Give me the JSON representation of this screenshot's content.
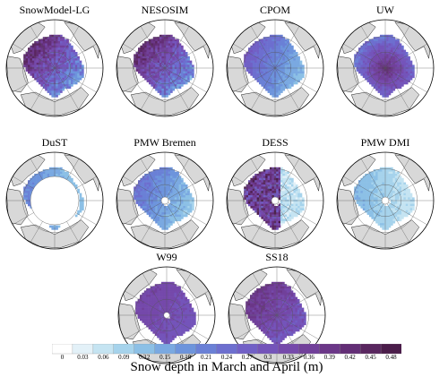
{
  "panels": [
    {
      "title": "SnowModel-LG",
      "pattern": "model",
      "hole": 0
    },
    {
      "title": "NESOSIM",
      "pattern": "model",
      "hole": 0
    },
    {
      "title": "CPOM",
      "pattern": "smooth",
      "hole": 0
    },
    {
      "title": "UW",
      "pattern": "central",
      "hole": 0
    },
    {
      "title": "DuST",
      "pattern": "dust",
      "hole": 1
    },
    {
      "title": "PMW Bremen",
      "pattern": "pmw",
      "hole": 0.15
    },
    {
      "title": "DESS",
      "pattern": "dess",
      "hole": 0.15
    },
    {
      "title": "PMW DMI",
      "pattern": "light",
      "hole": 0.15
    },
    {
      "title": "W99",
      "pattern": "w99",
      "hole": 0.12
    },
    {
      "title": "SS18",
      "pattern": "ss18",
      "hole": 0
    }
  ],
  "colorbar": {
    "label": "Snow depth in March and April (m)",
    "ticks": [
      "0",
      "0.03",
      "0.06",
      "0.09",
      "0.12",
      "0.15",
      "0.18",
      "0.21",
      "0.24",
      "0.27",
      "0.3",
      "0.33",
      "0.36",
      "0.39",
      "0.42",
      "0.45",
      "0.48"
    ],
    "colors": [
      "#ffffff",
      "#e3f1f8",
      "#c5e4f2",
      "#a6d3ec",
      "#8cc0e6",
      "#7aa9e1",
      "#6d94dc",
      "#6a80d6",
      "#6d6fcf",
      "#7160c6",
      "#7454ba",
      "#7549ab",
      "#71409a",
      "#6b3788",
      "#632e76",
      "#59265f",
      "#4b1d4a"
    ]
  },
  "colors": {
    "land": "#d8d8d8",
    "noData": "#ffffff",
    "grid": "#555555",
    "coast": "#222222"
  }
}
